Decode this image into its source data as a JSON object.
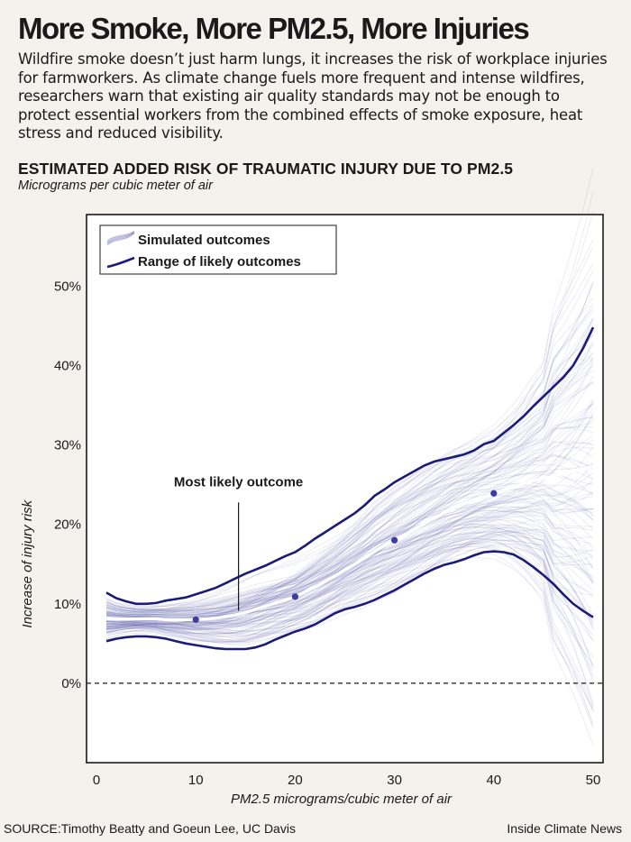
{
  "header": {
    "title": "More Smoke, More PM2.5, More Injuries",
    "intro": "Wildfire smoke doesn’t just harm lungs, it increases the risk of workplace injuries for farmworkers. As climate change fuels more frequent and intense wildfires, researchers warn that existing air quality standards may not be enough to protect essential workers from the combined effects of smoke exposure, heat stress and reduced visibility."
  },
  "chart_data": {
    "type": "line",
    "title": "ESTIMATED ADDED RISK OF TRAUMATIC INJURY DUE TO PM2.5",
    "subtitle": "Micrograms per cubic meter of air",
    "xlabel": "PM2.5 micrograms/cubic meter of air",
    "ylabel": "Increase of injury risk",
    "xlim": [
      -1,
      51
    ],
    "ylim": [
      -10,
      59
    ],
    "x_ticks": [
      0,
      10,
      20,
      30,
      40,
      50
    ],
    "y_ticks": [
      0,
      10,
      20,
      30,
      40,
      50
    ],
    "y_tick_labels": [
      "0%",
      "10%",
      "20%",
      "30%",
      "40%",
      "50%"
    ],
    "grid": false,
    "legend_position": "top-left",
    "colors": {
      "range": "#1b1b78",
      "simulated": "#5c5cad",
      "most_likely": "#ffffff",
      "points": "#3d3da0",
      "zero_line": "#1a1a1a"
    },
    "series": [
      {
        "name": "Range of likely outcomes",
        "role": "upper",
        "x": [
          1,
          2,
          3,
          4,
          5,
          6,
          7,
          8,
          9,
          10,
          11,
          12,
          13,
          14,
          15,
          16,
          17,
          18,
          19,
          20,
          21,
          22,
          23,
          24,
          25,
          26,
          27,
          28,
          29,
          30,
          31,
          32,
          33,
          34,
          35,
          36,
          37,
          38,
          39,
          40,
          41,
          42,
          43,
          44,
          45,
          46,
          47,
          48,
          49,
          50
        ],
        "values": [
          11.4,
          10.7,
          10.3,
          10.0,
          10.0,
          10.1,
          10.4,
          10.6,
          10.8,
          11.2,
          11.6,
          12.0,
          12.6,
          13.2,
          13.8,
          14.3,
          14.8,
          15.4,
          16.0,
          16.5,
          17.3,
          18.2,
          19.0,
          19.8,
          20.6,
          21.4,
          22.4,
          23.6,
          24.4,
          25.3,
          26.0,
          26.7,
          27.4,
          27.9,
          28.2,
          28.5,
          28.8,
          29.3,
          30.1,
          30.5,
          31.5,
          32.5,
          33.6,
          34.9,
          36.1,
          37.3,
          38.5,
          40.0,
          42.2,
          44.8
        ]
      },
      {
        "name": "Range of likely outcomes",
        "role": "lower",
        "x": [
          1,
          2,
          3,
          4,
          5,
          6,
          7,
          8,
          9,
          10,
          11,
          12,
          13,
          14,
          15,
          16,
          17,
          18,
          19,
          20,
          21,
          22,
          23,
          24,
          25,
          26,
          27,
          28,
          29,
          30,
          31,
          32,
          33,
          34,
          35,
          36,
          37,
          38,
          39,
          40,
          41,
          42,
          43,
          44,
          45,
          46,
          47,
          48,
          49,
          50
        ],
        "values": [
          5.3,
          5.6,
          5.8,
          5.9,
          5.9,
          5.8,
          5.6,
          5.3,
          5.0,
          4.8,
          4.6,
          4.4,
          4.3,
          4.3,
          4.3,
          4.5,
          4.9,
          5.5,
          6.0,
          6.5,
          6.9,
          7.4,
          8.1,
          8.8,
          9.3,
          9.6,
          10.0,
          10.5,
          11.1,
          11.7,
          12.4,
          13.1,
          13.8,
          14.4,
          14.9,
          15.2,
          15.6,
          16.1,
          16.5,
          16.6,
          16.5,
          16.2,
          15.5,
          14.6,
          13.6,
          12.5,
          11.2,
          10.0,
          9.1,
          8.3
        ]
      },
      {
        "name": "Most likely outcome",
        "role": "central",
        "x": [
          1,
          2,
          3,
          4,
          5,
          6,
          7,
          8,
          9,
          10,
          11,
          12,
          13,
          14,
          15,
          16,
          17,
          18,
          19,
          20,
          21,
          22,
          23,
          24,
          25,
          26,
          27,
          28,
          29,
          30,
          31,
          32,
          33,
          34,
          35,
          36,
          37,
          38,
          39,
          40,
          41,
          42,
          43,
          44,
          45,
          46,
          47,
          48,
          49,
          50
        ],
        "values": [
          8.2,
          8.1,
          8.1,
          8.1,
          8.1,
          8.1,
          8.0,
          8.0,
          8.0,
          8.0,
          8.1,
          8.2,
          8.4,
          8.6,
          8.9,
          9.3,
          9.7,
          10.1,
          10.5,
          10.9,
          11.5,
          12.1,
          12.8,
          13.5,
          14.3,
          15.0,
          15.8,
          16.6,
          17.3,
          18.0,
          18.7,
          19.4,
          20.1,
          20.8,
          21.5,
          22.1,
          22.6,
          23.1,
          23.5,
          23.9,
          24.3,
          24.7,
          25.1,
          25.5,
          25.8,
          26.1,
          26.4,
          26.7,
          27.0,
          27.3
        ]
      }
    ],
    "highlighted_points": [
      {
        "x": 10,
        "y": 8.0
      },
      {
        "x": 20,
        "y": 10.9
      },
      {
        "x": 30,
        "y": 18.0
      },
      {
        "x": 40,
        "y": 23.9
      }
    ],
    "legend": [
      {
        "label": "Simulated outcomes",
        "kind": "simulated"
      },
      {
        "label": "Range of likely outcomes",
        "kind": "range"
      }
    ],
    "annotation": {
      "text": "Most likely outcome",
      "x": 14.3,
      "y": 24.8,
      "pointer_y": 8.9
    }
  },
  "footer": {
    "source": "SOURCE:Timothy Beatty and Goeun Lee, UC Davis",
    "credit": "Inside Climate News"
  }
}
